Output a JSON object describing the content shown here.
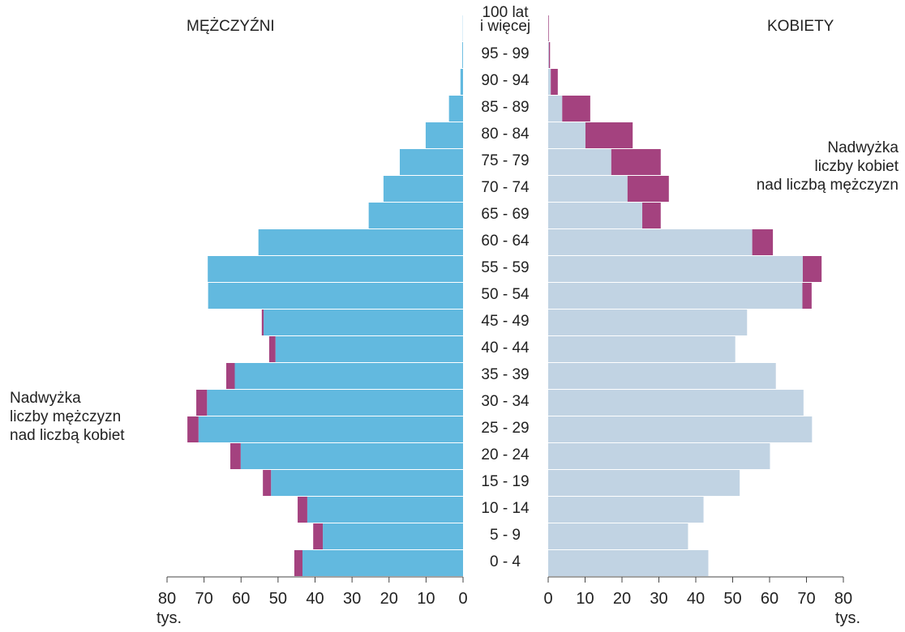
{
  "chart_data": {
    "type": "pyramid",
    "categories": [
      "0 - 4",
      "5 - 9",
      "10 - 14",
      "15 - 19",
      "20 - 24",
      "25 - 29",
      "30 - 34",
      "35 - 39",
      "40 - 44",
      "45 - 49",
      "50 - 54",
      "55 - 59",
      "60 - 64",
      "65 - 69",
      "70 - 74",
      "75 - 79",
      "80 - 84",
      "85 - 89",
      "90 - 94",
      "95 - 99",
      "100 lat\ni więcej"
    ],
    "series": [
      {
        "name": "MĘŻCZYŹNI",
        "color": "#62b9df",
        "values": [
          45.6,
          40.5,
          44.7,
          54.1,
          62.9,
          74.5,
          72.1,
          64.0,
          52.4,
          54.4,
          68.9,
          69.0,
          55.3,
          25.5,
          21.5,
          17.1,
          10.1,
          3.8,
          0.7,
          0.2,
          0.05
        ]
      },
      {
        "name": "KOBIETY",
        "color": "#c1d3e3",
        "values": [
          43.4,
          37.9,
          42.1,
          51.9,
          60.1,
          71.5,
          69.2,
          61.7,
          50.7,
          53.9,
          71.4,
          74.1,
          60.9,
          30.5,
          32.7,
          30.5,
          22.9,
          11.4,
          2.6,
          0.5,
          0.2
        ]
      }
    ],
    "excess_color": "#a4427f",
    "annotations": [
      {
        "text": "Nadwyżka\nliczby mężczyzn\nnad liczbą kobiet",
        "side": "left"
      },
      {
        "text": "Nadwyżka\nliczby kobiet\nnad liczbą mężczyzn",
        "side": "right"
      }
    ],
    "xlabel": "tys.",
    "xlim": [
      0,
      80
    ],
    "xticks": [
      0,
      10,
      20,
      30,
      40,
      50,
      60,
      70,
      80
    ]
  }
}
